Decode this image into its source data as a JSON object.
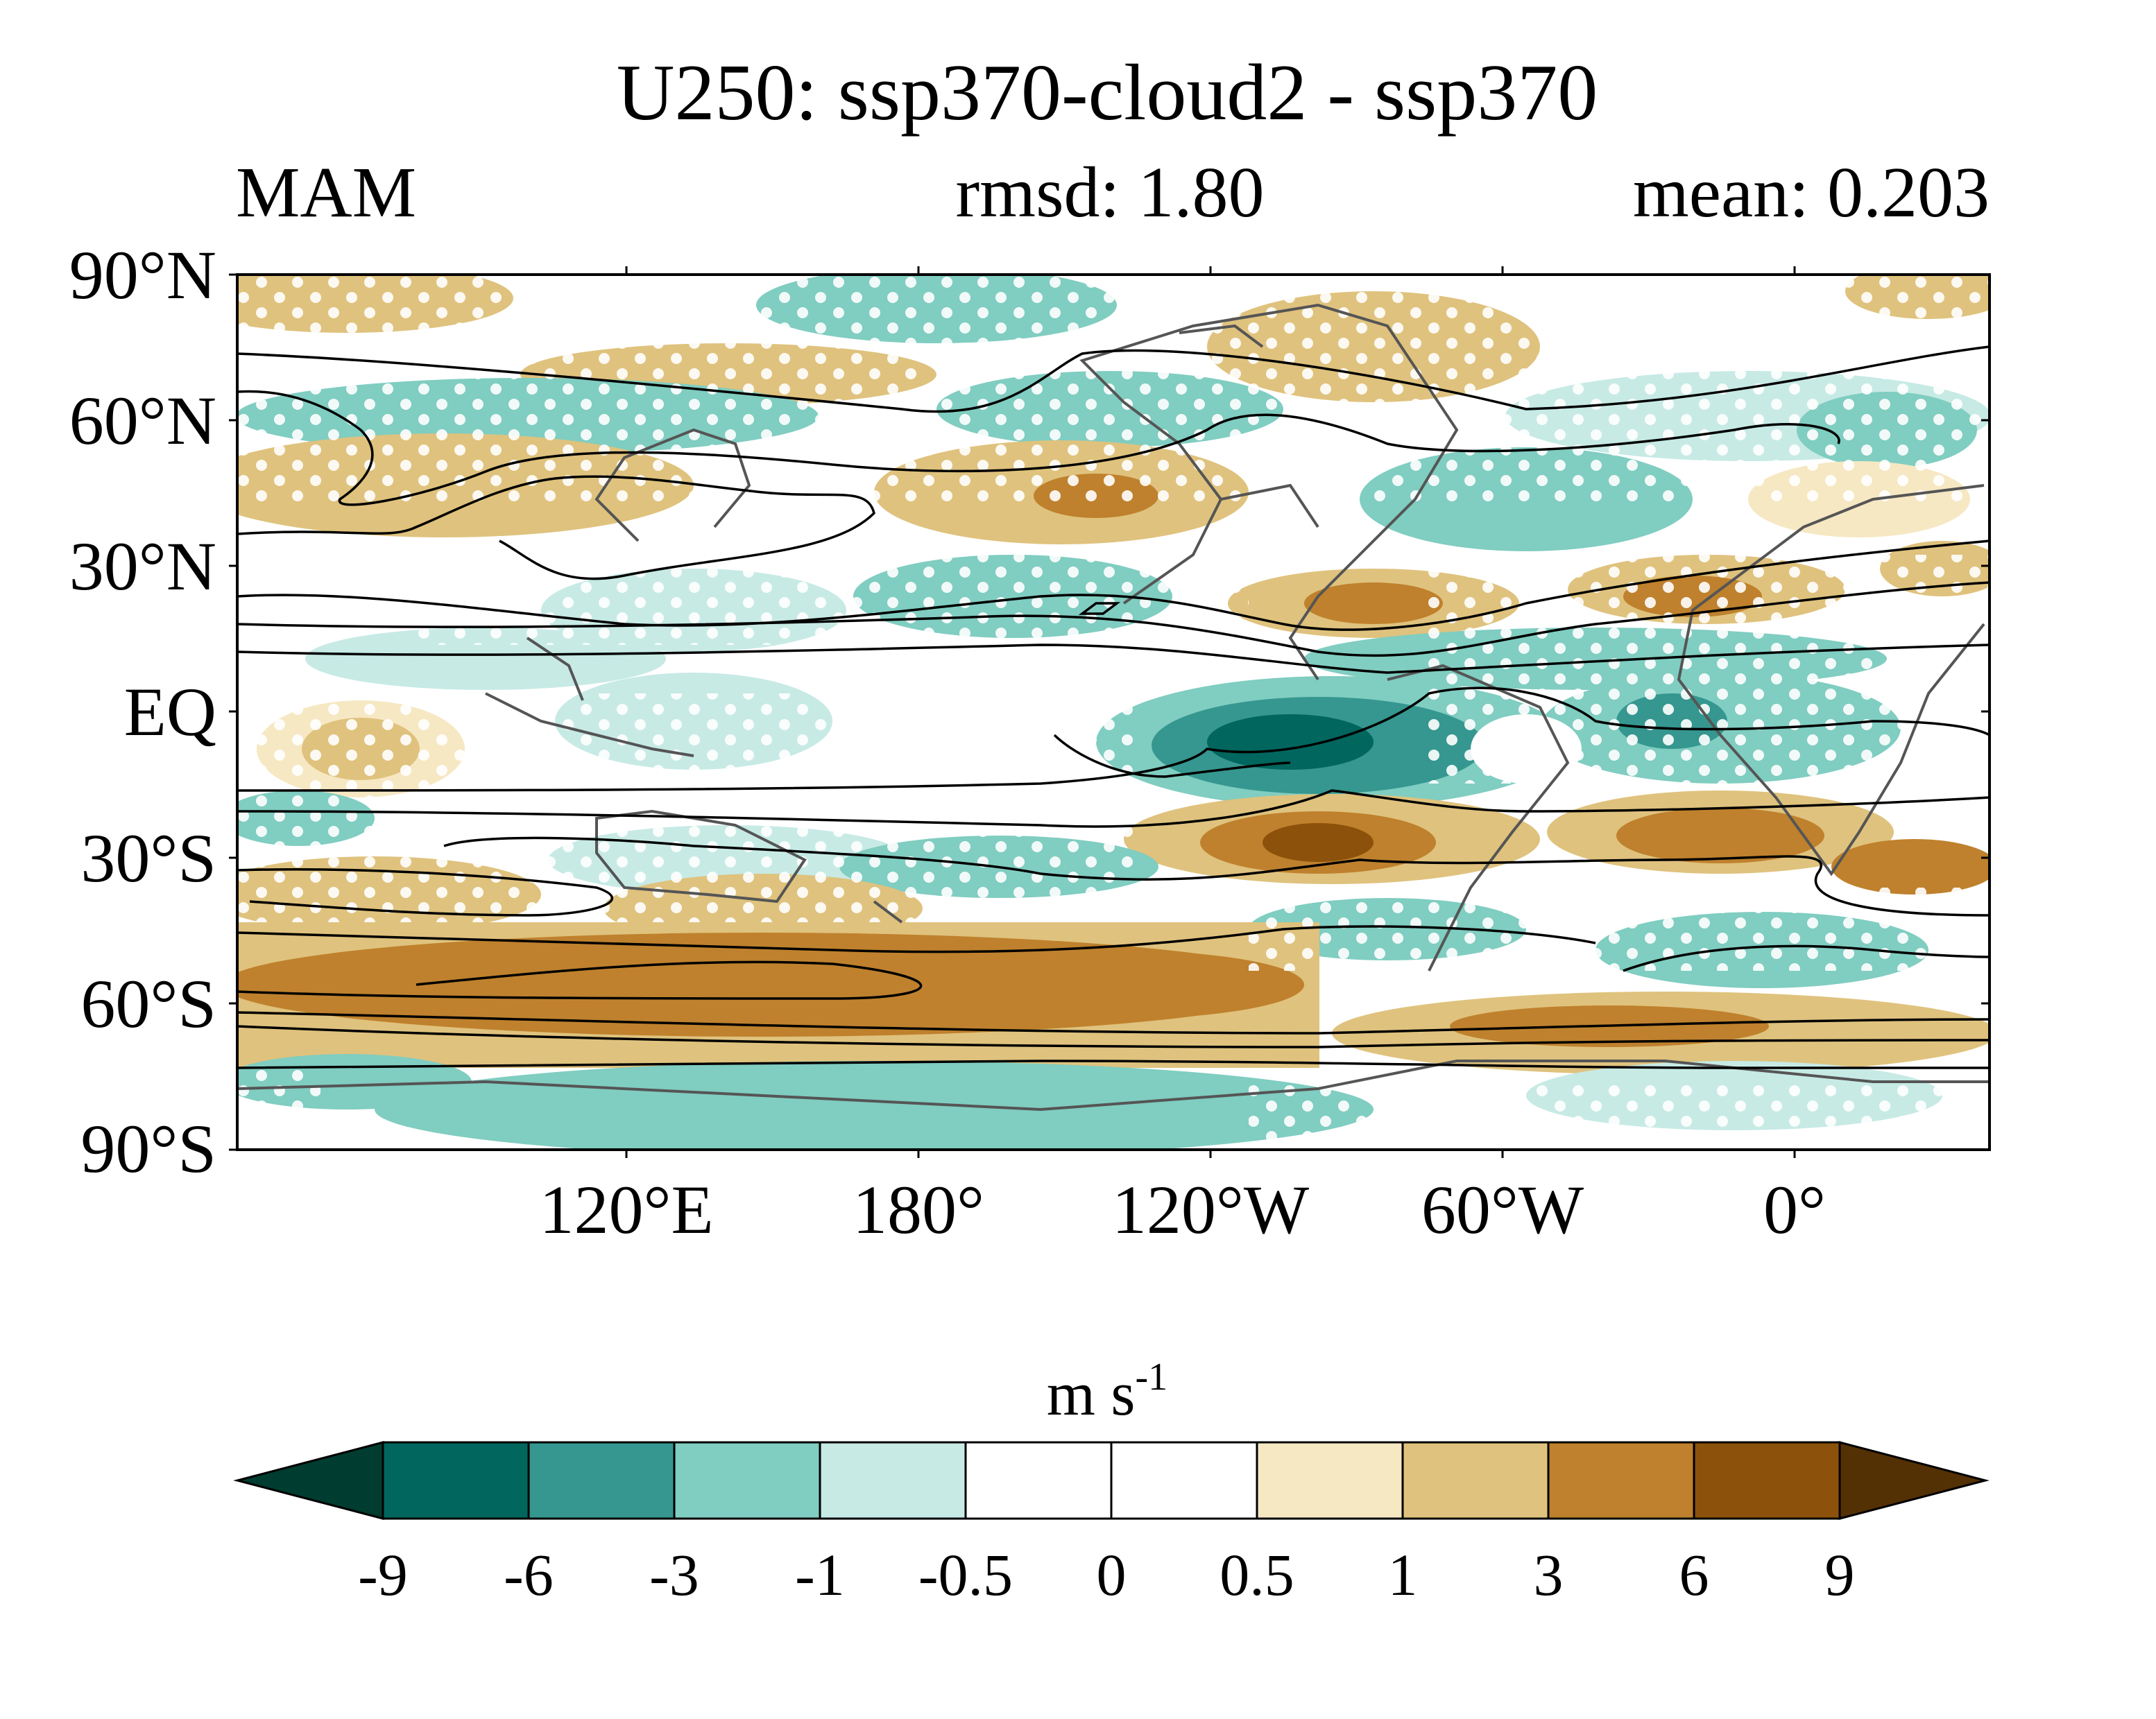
{
  "header": {
    "title": "U250: ssp370-cloud2 - ssp370",
    "season": "MAM",
    "rmsd": "rmsd: 1.80",
    "mean": "mean: 0.203"
  },
  "map": {
    "lat_ticks": [
      "90°N",
      "60°N",
      "30°N",
      "EQ",
      "30°S",
      "60°S",
      "90°S"
    ],
    "lon_ticks": [
      "120°E",
      "180°",
      "120°W",
      "60°W",
      "0°"
    ],
    "lon_range": [
      40,
      400
    ],
    "lat_range": [
      -90,
      90
    ],
    "coastline_color": "#555555",
    "contour_color": "#000000",
    "stipple_color": "#ffffff"
  },
  "colorbar": {
    "units": "m s-1",
    "labels": [
      "-9",
      "-6",
      "-3",
      "-1",
      "-0.5",
      "0",
      "0.5",
      "1",
      "3",
      "6",
      "9"
    ],
    "colors": [
      "#003c30",
      "#01665e",
      "#35978f",
      "#80cdc1",
      "#c7eae5",
      "#ffffff",
      "#ffffff",
      "#f6e8c3",
      "#dfc27d",
      "#bf812d",
      "#8c510a",
      "#543005"
    ]
  }
}
